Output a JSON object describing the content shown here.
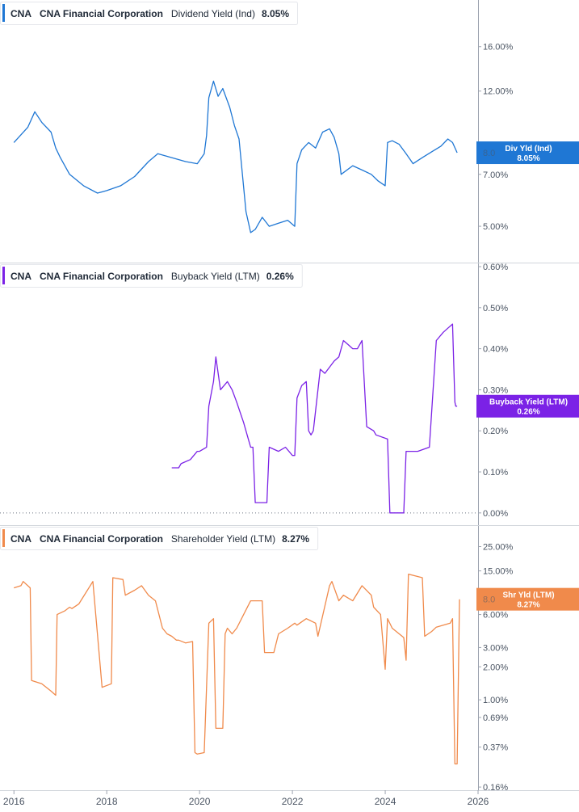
{
  "chart_data": [
    {
      "type": "line",
      "ticker": "CNA",
      "company": "CNA Financial Corporation",
      "metric": "Dividend Yield (Ind)",
      "current": "8.05%",
      "flag": {
        "line1": "Div Yld (Ind)",
        "line2": "8.05%",
        "value": 8.05
      },
      "color": "#1f77d4",
      "scale": "log",
      "ylim": [
        4.1,
        18.5
      ],
      "yticks": [
        {
          "v": 16,
          "label": "16.00%"
        },
        {
          "v": 12,
          "label": "12.00%"
        },
        {
          "v": 7,
          "label": "7.00%"
        },
        {
          "v": 5,
          "label": "5.00%"
        }
      ],
      "occluded_tick": "8.0",
      "x": [
        2016.0,
        2016.3,
        2016.45,
        2016.6,
        2016.8,
        2016.9,
        2017.0,
        2017.2,
        2017.5,
        2017.8,
        2018.0,
        2018.3,
        2018.6,
        2018.9,
        2019.1,
        2019.4,
        2019.7,
        2019.95,
        2020.1,
        2020.15,
        2020.2,
        2020.3,
        2020.4,
        2020.5,
        2020.65,
        2020.75,
        2020.85,
        2021.0,
        2021.1,
        2021.2,
        2021.35,
        2021.5,
        2021.7,
        2021.9,
        2022.05,
        2022.1,
        2022.2,
        2022.35,
        2022.5,
        2022.65,
        2022.8,
        2022.9,
        2023.0,
        2023.05,
        2023.3,
        2023.5,
        2023.7,
        2023.85,
        2024.0,
        2024.05,
        2024.15,
        2024.3,
        2024.45,
        2024.6,
        2024.8,
        2025.0,
        2025.2,
        2025.35,
        2025.45,
        2025.55
      ],
      "y": [
        8.6,
        9.5,
        10.5,
        9.8,
        9.2,
        8.3,
        7.8,
        7.0,
        6.5,
        6.2,
        6.3,
        6.5,
        6.9,
        7.6,
        8.0,
        7.8,
        7.6,
        7.5,
        8.0,
        9.0,
        11.5,
        12.8,
        11.6,
        12.2,
        10.8,
        9.6,
        8.8,
        5.5,
        4.8,
        4.9,
        5.3,
        5.0,
        5.1,
        5.2,
        5.0,
        7.5,
        8.2,
        8.6,
        8.3,
        9.2,
        9.4,
        8.9,
        8.0,
        7.0,
        7.4,
        7.2,
        7.0,
        6.7,
        6.5,
        8.6,
        8.7,
        8.5,
        8.0,
        7.5,
        7.8,
        8.1,
        8.4,
        8.8,
        8.6,
        8.05
      ]
    },
    {
      "type": "line",
      "ticker": "CNA",
      "company": "CNA Financial Corporation",
      "metric": "Buyback Yield (LTM)",
      "current": "0.26%",
      "flag": {
        "line1": "Buyback Yield (LTM)",
        "line2": "0.26%",
        "value": 0.26
      },
      "color": "#7b22e6",
      "scale": "linear",
      "ylim": [
        -0.02,
        0.6
      ],
      "yticks": [
        {
          "v": 0.6,
          "label": "0.60%"
        },
        {
          "v": 0.5,
          "label": "0.50%"
        },
        {
          "v": 0.4,
          "label": "0.40%"
        },
        {
          "v": 0.3,
          "label": "0.30%"
        },
        {
          "v": 0.2,
          "label": "0.20%"
        },
        {
          "v": 0.1,
          "label": "0.10%"
        },
        {
          "v": 0.0,
          "label": "0.00%"
        }
      ],
      "x": [
        2019.4,
        2019.55,
        2019.6,
        2019.8,
        2019.95,
        2020.0,
        2020.15,
        2020.2,
        2020.3,
        2020.35,
        2020.45,
        2020.6,
        2020.7,
        2020.8,
        2020.95,
        2021.05,
        2021.1,
        2021.15,
        2021.2,
        2021.35,
        2021.45,
        2021.5,
        2021.7,
        2021.85,
        2022.0,
        2022.05,
        2022.1,
        2022.2,
        2022.3,
        2022.35,
        2022.4,
        2022.45,
        2022.6,
        2022.7,
        2022.9,
        2023.0,
        2023.1,
        2023.2,
        2023.3,
        2023.4,
        2023.5,
        2023.6,
        2023.75,
        2023.8,
        2024.05,
        2024.1,
        2024.25,
        2024.3,
        2024.4,
        2024.45,
        2024.55,
        2024.7,
        2024.95,
        2025.1,
        2025.25,
        2025.35,
        2025.45,
        2025.5,
        2025.52,
        2025.55
      ],
      "y": [
        0.11,
        0.11,
        0.12,
        0.13,
        0.15,
        0.15,
        0.16,
        0.26,
        0.32,
        0.38,
        0.3,
        0.32,
        0.3,
        0.27,
        0.22,
        0.18,
        0.16,
        0.16,
        0.025,
        0.025,
        0.025,
        0.16,
        0.15,
        0.16,
        0.14,
        0.14,
        0.28,
        0.31,
        0.32,
        0.2,
        0.19,
        0.2,
        0.35,
        0.34,
        0.37,
        0.38,
        0.42,
        0.41,
        0.4,
        0.4,
        0.42,
        0.21,
        0.2,
        0.19,
        0.18,
        0.0,
        0.0,
        0.0,
        0.0,
        0.15,
        0.15,
        0.15,
        0.16,
        0.42,
        0.44,
        0.45,
        0.46,
        0.27,
        0.26,
        0.26
      ]
    },
    {
      "type": "line",
      "ticker": "CNA",
      "company": "CNA Financial Corporation",
      "metric": "Shareholder Yield (LTM)",
      "current": "8.27%",
      "flag": {
        "line1": "Shr Yld (LTM)",
        "line2": "8.27%",
        "value": 8.27
      },
      "color": "#f08a4b",
      "scale": "log",
      "ylim": [
        0.155,
        36
      ],
      "yticks": [
        {
          "v": 25,
          "label": "25.00%"
        },
        {
          "v": 15,
          "label": "15.00%"
        },
        {
          "v": 6,
          "label": "6.00%"
        },
        {
          "v": 3,
          "label": "3.00%"
        },
        {
          "v": 2,
          "label": "2.00%"
        },
        {
          "v": 1,
          "label": "1.00%"
        },
        {
          "v": 0.69,
          "label": "0.69%"
        },
        {
          "v": 0.37,
          "label": "0.37%"
        },
        {
          "v": 0.16,
          "label": "0.16%"
        }
      ],
      "occluded_tick": "8.0",
      "x": [
        2016.0,
        2016.15,
        2016.2,
        2016.35,
        2016.38,
        2016.6,
        2016.8,
        2016.9,
        2016.93,
        2017.1,
        2017.2,
        2017.25,
        2017.4,
        2017.7,
        2017.9,
        2018.1,
        2018.13,
        2018.35,
        2018.4,
        2018.6,
        2018.75,
        2018.9,
        2019.05,
        2019.2,
        2019.3,
        2019.4,
        2019.5,
        2019.55,
        2019.7,
        2019.85,
        2019.9,
        2019.95,
        2020.1,
        2020.2,
        2020.3,
        2020.35,
        2020.5,
        2020.55,
        2020.6,
        2020.7,
        2020.8,
        2020.95,
        2021.1,
        2021.35,
        2021.4,
        2021.6,
        2021.7,
        2021.9,
        2022.05,
        2022.1,
        2022.3,
        2022.5,
        2022.55,
        2022.8,
        2022.85,
        2023.0,
        2023.1,
        2023.3,
        2023.5,
        2023.7,
        2023.75,
        2023.9,
        2024.0,
        2024.05,
        2024.15,
        2024.4,
        2024.45,
        2024.5,
        2024.8,
        2024.85,
        2025.0,
        2025.1,
        2025.4,
        2025.45,
        2025.5,
        2025.55,
        2025.6
      ],
      "y": [
        10.5,
        11,
        12,
        10.5,
        1.5,
        1.4,
        1.2,
        1.1,
        6,
        6.5,
        7,
        6.8,
        7.5,
        12,
        1.3,
        1.4,
        13,
        12.5,
        9,
        10,
        11,
        9,
        8,
        4.5,
        4.0,
        3.8,
        3.5,
        3.5,
        3.3,
        3.4,
        0.33,
        0.32,
        0.33,
        5,
        5.5,
        0.55,
        0.55,
        4,
        4.5,
        4,
        4.5,
        6,
        8,
        8,
        2.7,
        2.7,
        4,
        4.5,
        5,
        4.8,
        5.5,
        5.0,
        3.8,
        11,
        12,
        8,
        9,
        8,
        11,
        9,
        7,
        6,
        1.9,
        5.5,
        4.5,
        3.7,
        2.3,
        14,
        13,
        3.8,
        4.2,
        4.6,
        5,
        5.5,
        0.26,
        0.26,
        8.27
      ]
    }
  ],
  "x_axis": {
    "range": [
      2015.7,
      2026.0
    ],
    "ticks": [
      {
        "v": 2016,
        "label": "2016"
      },
      {
        "v": 2018,
        "label": "2018"
      },
      {
        "v": 2020,
        "label": "2020"
      },
      {
        "v": 2022,
        "label": "2022"
      },
      {
        "v": 2024,
        "label": "2024"
      },
      {
        "v": 2026,
        "label": "2026"
      }
    ]
  }
}
